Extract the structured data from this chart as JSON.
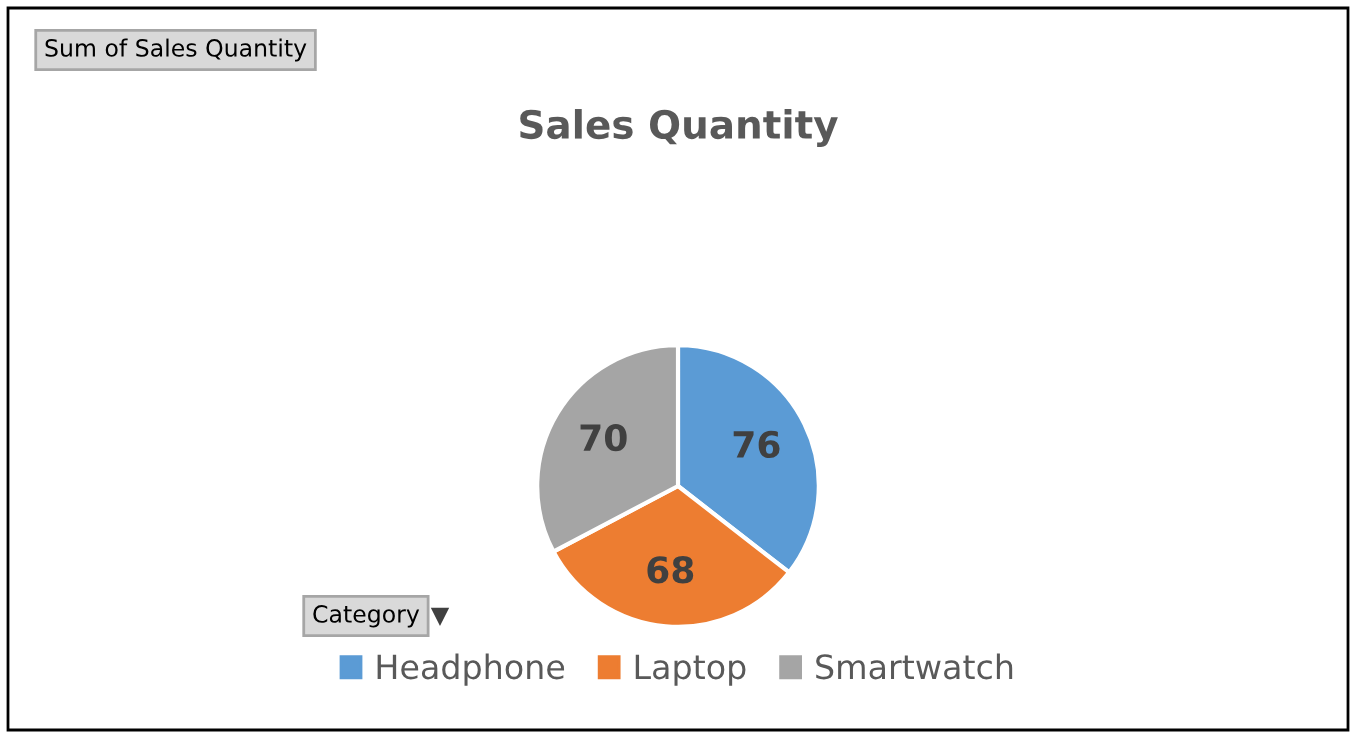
{
  "chart_data": {
    "type": "pie",
    "title": "Sales Quantity",
    "categories": [
      "Headphone",
      "Laptop",
      "Smartwatch"
    ],
    "values": [
      76,
      68,
      70
    ],
    "colors": [
      "#5b9bd5",
      "#ed7d31",
      "#a5a5a5"
    ],
    "data_labels": true,
    "legend": "bottom",
    "legend_title": "Category",
    "annotations": [
      "Sum of Sales Quantity"
    ]
  }
}
